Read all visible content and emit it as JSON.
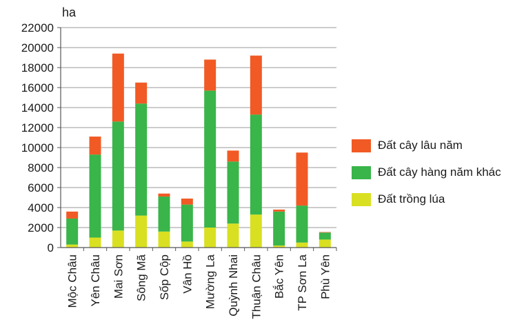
{
  "chart_data": {
    "type": "bar",
    "stacked": true,
    "ylabel": "ha",
    "ylim": [
      0,
      22000
    ],
    "yticks": [
      "0",
      "2000",
      "4000",
      "6000",
      "8000",
      "10000",
      "12000",
      "14000",
      "16000",
      "18000",
      "20000",
      "22000"
    ],
    "grid": true,
    "legend_position": "right",
    "categories": [
      "Mộc Châu",
      "Yên Châu",
      "Mai Sơn",
      "Sông Mã",
      "Sốp Cộp",
      "Vân Hồ",
      "Mường La",
      "Quỳnh Nhai",
      "Thuận Châu",
      "Bắc Yên",
      "TP Sơn La",
      "Phù Yên"
    ],
    "series": [
      {
        "name": "Đất trồng lúa",
        "color": "#d9e021",
        "values": [
          300,
          1000,
          1700,
          3200,
          1600,
          600,
          2000,
          2400,
          3300,
          200,
          500,
          800
        ]
      },
      {
        "name": "Đất cây hàng năm khác",
        "color": "#39b54a",
        "values": [
          2600,
          8300,
          10900,
          11200,
          3500,
          3700,
          13700,
          6200,
          10000,
          3400,
          3700,
          700
        ]
      },
      {
        "name": "Đất cây lâu năm",
        "color": "#f15a24",
        "values": [
          700,
          1800,
          6800,
          2100,
          300,
          600,
          3100,
          1100,
          5900,
          200,
          5300,
          50
        ]
      }
    ],
    "legend_order": [
      2,
      1,
      0
    ]
  }
}
